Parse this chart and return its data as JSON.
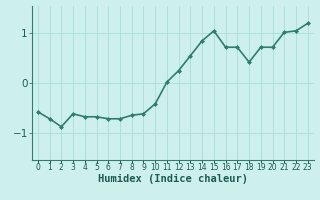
{
  "x": [
    0,
    1,
    2,
    3,
    4,
    5,
    6,
    7,
    8,
    9,
    10,
    11,
    12,
    13,
    14,
    15,
    16,
    17,
    18,
    19,
    20,
    21,
    22,
    23
  ],
  "y": [
    -0.58,
    -0.72,
    -0.88,
    -0.62,
    -0.68,
    -0.68,
    -0.72,
    -0.72,
    -0.65,
    -0.62,
    -0.42,
    0.02,
    0.25,
    0.55,
    0.85,
    1.05,
    0.72,
    0.72,
    0.42,
    0.72,
    0.72,
    1.02,
    1.05,
    1.2
  ],
  "line_color": "#2e7d6e",
  "marker": "D",
  "marker_size": 2.0,
  "bg_color": "#cef0ec",
  "grid_color": "#aaddd7",
  "xlabel": "Humidex (Indice chaleur)",
  "xlabel_fontsize": 7.5,
  "xlabel_color": "#1a5c52",
  "yticks": [
    -1,
    0,
    1
  ],
  "ylim": [
    -1.55,
    1.55
  ],
  "xlim": [
    -0.5,
    23.5
  ],
  "tick_color": "#1a5c52",
  "ytick_fontsize": 7.5,
  "xtick_fontsize": 5.5,
  "linewidth": 1.2,
  "spine_color": "#2e7d6e"
}
